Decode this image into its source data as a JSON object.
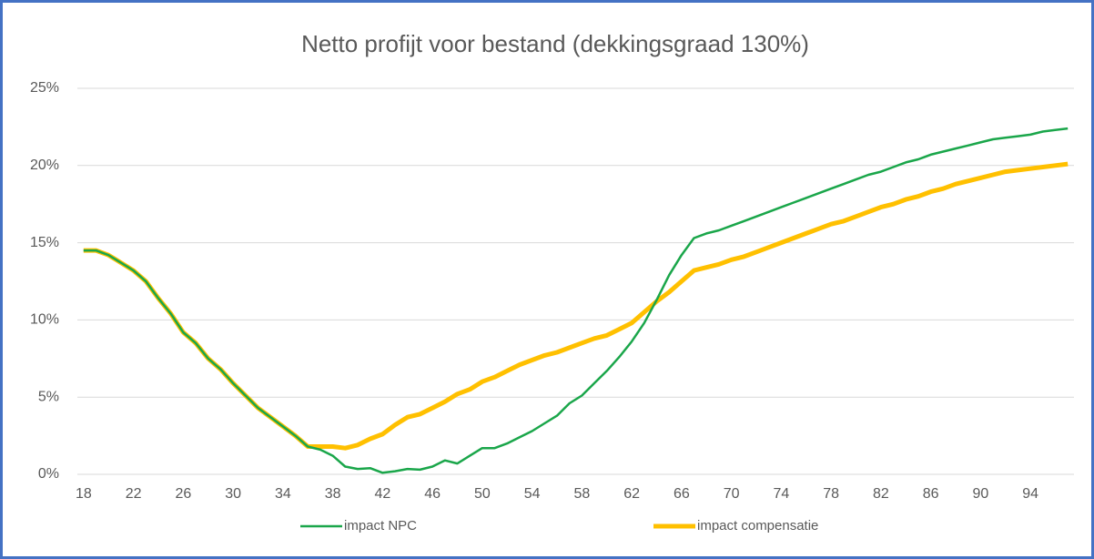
{
  "chart_data": {
    "type": "line",
    "title": "Netto profijt voor bestand (dekkingsgraad 130%)",
    "categories": [
      "18",
      null,
      null,
      null,
      "22",
      null,
      null,
      null,
      "26",
      null,
      null,
      null,
      "30",
      null,
      null,
      null,
      "34",
      null,
      null,
      null,
      "38",
      null,
      null,
      null,
      "42",
      null,
      null,
      null,
      "46",
      null,
      null,
      null,
      "50",
      null,
      null,
      null,
      "54",
      null,
      null,
      null,
      "58",
      null,
      null,
      null,
      "62",
      null,
      null,
      null,
      "66",
      null,
      null,
      null,
      "70",
      null,
      null,
      null,
      "74",
      null,
      null,
      null,
      "78",
      null,
      null,
      null,
      "82",
      null,
      null,
      null,
      "86",
      null,
      null,
      null,
      "90",
      null,
      null,
      null,
      "94",
      null,
      null,
      null
    ],
    "series": [
      {
        "name": "impact NPC",
        "color": "#1aa64a",
        "values": [
          14.5,
          14.5,
          14.2,
          13.7,
          13.2,
          12.5,
          11.4,
          10.4,
          9.2,
          8.5,
          7.5,
          6.8,
          5.9,
          5.1,
          4.3,
          3.7,
          3.1,
          2.5,
          1.8,
          1.6,
          1.2,
          0.5,
          0.35,
          0.4,
          0.1,
          0.2,
          0.35,
          0.3,
          0.5,
          0.9,
          0.7,
          1.2,
          1.7,
          1.7,
          2.0,
          2.4,
          2.8,
          3.3,
          3.8,
          4.6,
          5.1,
          5.9,
          6.7,
          7.6,
          8.6,
          9.8,
          11.3,
          12.9,
          14.2,
          15.3,
          15.6,
          15.8,
          16.1,
          16.4,
          16.7,
          17.0,
          17.3,
          17.6,
          17.9,
          18.2,
          18.5,
          18.8,
          19.1,
          19.4,
          19.6,
          19.9,
          20.2,
          20.4,
          20.7,
          20.9,
          21.1,
          21.3,
          21.5,
          21.7,
          21.8,
          21.9,
          22.0,
          22.2,
          22.3,
          22.4
        ]
      },
      {
        "name": "impact compensatie",
        "color": "#ffc000",
        "values": [
          14.5,
          14.5,
          14.2,
          13.7,
          13.2,
          12.5,
          11.4,
          10.4,
          9.2,
          8.5,
          7.5,
          6.8,
          5.9,
          5.1,
          4.3,
          3.7,
          3.1,
          2.5,
          1.8,
          1.8,
          1.8,
          1.7,
          1.9,
          2.3,
          2.6,
          3.2,
          3.7,
          3.9,
          4.3,
          4.7,
          5.2,
          5.5,
          6.0,
          6.3,
          6.7,
          7.1,
          7.4,
          7.7,
          7.9,
          8.2,
          8.5,
          8.8,
          9.0,
          9.4,
          9.8,
          10.5,
          11.2,
          11.8,
          12.5,
          13.2,
          13.4,
          13.6,
          13.9,
          14.1,
          14.4,
          14.7,
          15.0,
          15.3,
          15.6,
          15.9,
          16.2,
          16.4,
          16.7,
          17.0,
          17.3,
          17.5,
          17.8,
          18.0,
          18.3,
          18.5,
          18.8,
          19.0,
          19.2,
          19.4,
          19.6,
          19.7,
          19.8,
          19.9,
          20.0,
          20.1
        ]
      }
    ],
    "ylim": [
      0,
      25
    ],
    "yticks": [
      {
        "value": 0,
        "label": "0%"
      },
      {
        "value": 5,
        "label": "5%"
      },
      {
        "value": 10,
        "label": "10%"
      },
      {
        "value": 15,
        "label": "15%"
      },
      {
        "value": 20,
        "label": "20%"
      },
      {
        "value": 25,
        "label": "25%"
      }
    ],
    "grid": true,
    "legend": "bottom"
  }
}
